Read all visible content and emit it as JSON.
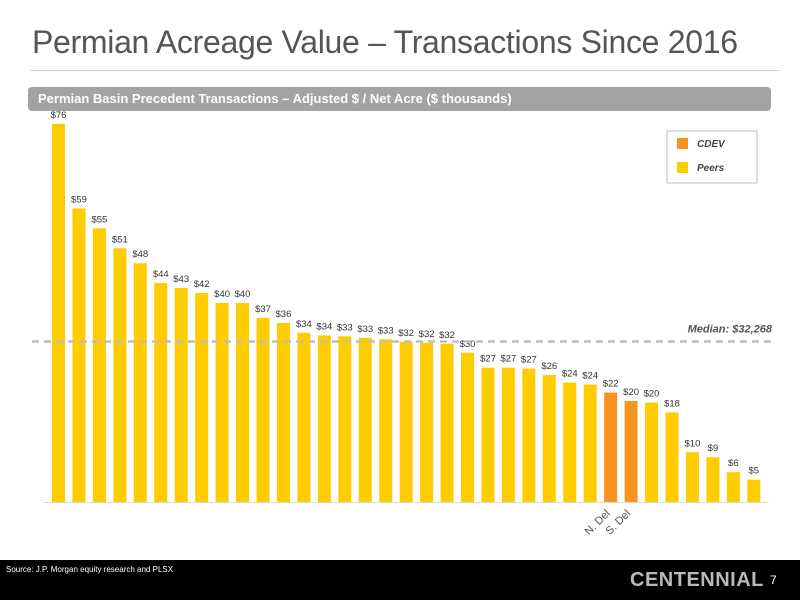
{
  "slide": {
    "title": "Permian Acreage Value – Transactions Since 2016",
    "banner": "Permian Basin Precedent Transactions – Adjusted $ / Net Acre ($ thousands)",
    "source": "Source: J.P. Morgan equity research and PLSX",
    "logo": "CENTENNIAL",
    "page_number": "7"
  },
  "colors": {
    "peers": "#FFCC00",
    "cdev": "#F7931E",
    "median_line": "#bdbdbd",
    "banner": "#a3a3a3"
  },
  "chart_data": {
    "type": "bar",
    "title": "Permian Basin Precedent Transactions – Adjusted $ / Net Acre ($ thousands)",
    "ylim": [
      0,
      80
    ],
    "grid": false,
    "legend_position": "top-right",
    "series": [
      {
        "name": "CDEV",
        "color": "#F7931E"
      },
      {
        "name": "Peers",
        "color": "#FFCC00"
      }
    ],
    "bars": [
      {
        "label": "$76",
        "value": 76,
        "series": "Peers"
      },
      {
        "label": "$59",
        "value": 59,
        "series": "Peers"
      },
      {
        "label": "$55",
        "value": 55,
        "series": "Peers"
      },
      {
        "label": "$51",
        "value": 51,
        "series": "Peers"
      },
      {
        "label": "$48",
        "value": 48,
        "series": "Peers"
      },
      {
        "label": "$44",
        "value": 44,
        "series": "Peers"
      },
      {
        "label": "$43",
        "value": 43,
        "series": "Peers"
      },
      {
        "label": "$42",
        "value": 42,
        "series": "Peers"
      },
      {
        "label": "$40",
        "value": 40,
        "series": "Peers"
      },
      {
        "label": "$40",
        "value": 40,
        "series": "Peers"
      },
      {
        "label": "$37",
        "value": 37,
        "series": "Peers"
      },
      {
        "label": "$36",
        "value": 36,
        "series": "Peers"
      },
      {
        "label": "$34",
        "value": 34,
        "series": "Peers"
      },
      {
        "label": "$34",
        "value": 33.5,
        "series": "Peers"
      },
      {
        "label": "$33",
        "value": 33.3,
        "series": "Peers"
      },
      {
        "label": "$33",
        "value": 33,
        "series": "Peers"
      },
      {
        "label": "$33",
        "value": 32.7,
        "series": "Peers"
      },
      {
        "label": "$32",
        "value": 32.2,
        "series": "Peers"
      },
      {
        "label": "$32",
        "value": 32,
        "series": "Peers"
      },
      {
        "label": "$32",
        "value": 31.8,
        "series": "Peers"
      },
      {
        "label": "$30",
        "value": 30,
        "series": "Peers"
      },
      {
        "label": "$27",
        "value": 27,
        "series": "Peers"
      },
      {
        "label": "$27",
        "value": 27,
        "series": "Peers"
      },
      {
        "label": "$27",
        "value": 26.8,
        "series": "Peers"
      },
      {
        "label": "$26",
        "value": 25.5,
        "series": "Peers"
      },
      {
        "label": "$24",
        "value": 24,
        "series": "Peers"
      },
      {
        "label": "$24",
        "value": 23.6,
        "series": "Peers"
      },
      {
        "label": "$22",
        "value": 22,
        "series": "CDEV",
        "category": "N. Del"
      },
      {
        "label": "$20",
        "value": 20.3,
        "series": "CDEV",
        "category": "S. Del"
      },
      {
        "label": "$20",
        "value": 20,
        "series": "Peers"
      },
      {
        "label": "$18",
        "value": 18,
        "series": "Peers"
      },
      {
        "label": "$10",
        "value": 10,
        "series": "Peers"
      },
      {
        "label": "$9",
        "value": 9,
        "series": "Peers"
      },
      {
        "label": "$6",
        "value": 6,
        "series": "Peers"
      },
      {
        "label": "$5",
        "value": 4.5,
        "series": "Peers"
      }
    ],
    "median": {
      "value": 32.268,
      "label": "Median: $32,268"
    }
  }
}
